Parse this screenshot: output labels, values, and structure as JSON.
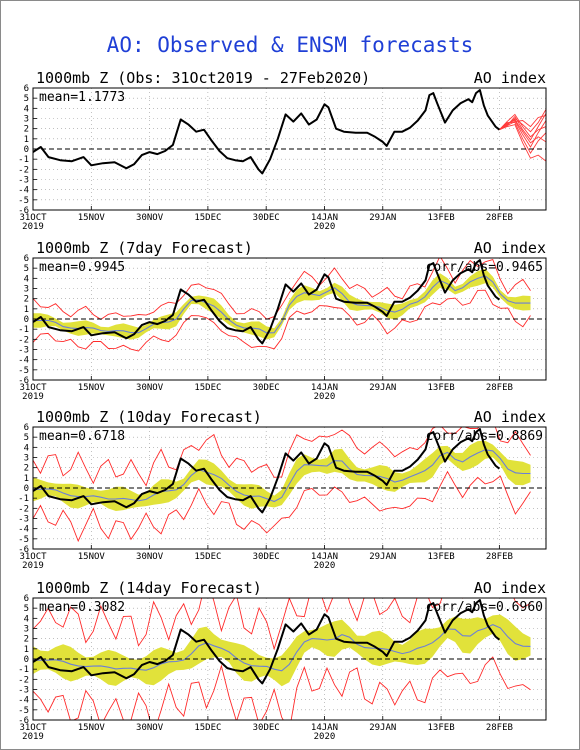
{
  "main_title": "AO: Observed & ENSM forecasts",
  "colors": {
    "title": "#1f3fd6",
    "observed": "#000000",
    "ens_mean": "#6b7fd7",
    "ens_band": "#e1e23a",
    "ens_bound": "#ff2a2a",
    "ens_member": "#ff3b3b"
  },
  "chart_data": [
    {
      "type": "line",
      "title": "1000mb Z (Obs: 31Oct2019 - 27Feb2020)",
      "index_label": "AO index",
      "stat": "mean=1.1773",
      "y_ticks": [
        "6",
        "5",
        "4",
        "3",
        "2",
        "1",
        "0",
        "-1",
        "-2",
        "-3",
        "-4",
        "-5",
        "-6"
      ],
      "ylim": [
        -6,
        6
      ],
      "x_ticks": [
        {
          "day": 0,
          "label": "31OCT",
          "sub": "2019"
        },
        {
          "day": 15,
          "label": "15NOV"
        },
        {
          "day": 30,
          "label": "30NOV"
        },
        {
          "day": 45,
          "label": "15DEC"
        },
        {
          "day": 60,
          "label": "30DEC"
        },
        {
          "day": 75,
          "label": "14JAN",
          "sub": "2020"
        },
        {
          "day": 90,
          "label": "29JAN"
        },
        {
          "day": 105,
          "label": "13FEB"
        },
        {
          "day": 120,
          "label": "28FEB"
        }
      ],
      "xlim": [
        0,
        132
      ],
      "observed": [
        [
          0,
          -0.3
        ],
        [
          2,
          0.2
        ],
        [
          4,
          -0.8
        ],
        [
          7,
          -1.1
        ],
        [
          10,
          -1.2
        ],
        [
          13,
          -0.8
        ],
        [
          15,
          -1.6
        ],
        [
          18,
          -1.4
        ],
        [
          21,
          -1.3
        ],
        [
          24,
          -1.9
        ],
        [
          26,
          -1.5
        ],
        [
          28,
          -0.6
        ],
        [
          30,
          -0.3
        ],
        [
          32,
          -0.5
        ],
        [
          34,
          -0.2
        ],
        [
          36,
          0.4
        ],
        [
          38,
          2.9
        ],
        [
          40,
          2.4
        ],
        [
          42,
          1.7
        ],
        [
          44,
          1.9
        ],
        [
          46,
          0.8
        ],
        [
          48,
          -0.2
        ],
        [
          50,
          -0.9
        ],
        [
          52,
          -1.1
        ],
        [
          54,
          -1.2
        ],
        [
          56,
          -0.8
        ],
        [
          58,
          -2.0
        ],
        [
          59,
          -2.4
        ],
        [
          61,
          -1.0
        ],
        [
          63,
          1.0
        ],
        [
          65,
          3.4
        ],
        [
          67,
          2.7
        ],
        [
          69,
          3.5
        ],
        [
          71,
          2.4
        ],
        [
          73,
          2.9
        ],
        [
          75,
          4.4
        ],
        [
          76,
          4.1
        ],
        [
          78,
          2.0
        ],
        [
          80,
          1.7
        ],
        [
          83,
          1.6
        ],
        [
          86,
          1.6
        ],
        [
          88,
          1.2
        ],
        [
          90,
          0.7
        ],
        [
          91,
          0.3
        ],
        [
          93,
          1.7
        ],
        [
          95,
          1.7
        ],
        [
          97,
          2.1
        ],
        [
          99,
          2.8
        ],
        [
          101,
          3.8
        ],
        [
          102,
          5.3
        ],
        [
          103,
          5.5
        ],
        [
          104,
          4.5
        ],
        [
          106,
          2.6
        ],
        [
          108,
          3.8
        ],
        [
          110,
          4.5
        ],
        [
          112,
          4.9
        ],
        [
          113,
          4.6
        ],
        [
          114,
          5.5
        ],
        [
          115,
          5.8
        ],
        [
          116,
          4.3
        ],
        [
          117,
          3.3
        ],
        [
          119,
          2.2
        ],
        [
          120,
          1.9
        ]
      ],
      "members": [
        [
          [
            120,
            1.9
          ],
          [
            122,
            2.5
          ],
          [
            124,
            2.8
          ],
          [
            126,
            1.4
          ],
          [
            128,
            0.2
          ],
          [
            130,
            1.6
          ],
          [
            132,
            2.8
          ]
        ],
        [
          [
            120,
            1.9
          ],
          [
            122,
            2.3
          ],
          [
            124,
            3.2
          ],
          [
            126,
            1.9
          ],
          [
            128,
            0.9
          ],
          [
            130,
            2.2
          ],
          [
            132,
            3.5
          ]
        ],
        [
          [
            120,
            1.9
          ],
          [
            122,
            2.6
          ],
          [
            124,
            2.6
          ],
          [
            126,
            1.0
          ],
          [
            128,
            -0.4
          ],
          [
            130,
            0.8
          ],
          [
            132,
            1.6
          ]
        ],
        [
          [
            120,
            1.9
          ],
          [
            122,
            2.4
          ],
          [
            124,
            3.0
          ],
          [
            126,
            2.4
          ],
          [
            128,
            1.7
          ],
          [
            130,
            2.6
          ],
          [
            132,
            3.9
          ]
        ],
        [
          [
            120,
            1.9
          ],
          [
            122,
            2.2
          ],
          [
            124,
            2.4
          ],
          [
            126,
            0.6
          ],
          [
            128,
            -0.9
          ],
          [
            130,
            -0.6
          ],
          [
            132,
            -1.2
          ]
        ],
        [
          [
            120,
            1.9
          ],
          [
            122,
            2.7
          ],
          [
            124,
            3.4
          ],
          [
            126,
            2.2
          ],
          [
            128,
            1.2
          ],
          [
            130,
            1.9
          ],
          [
            132,
            2.2
          ]
        ],
        [
          [
            120,
            1.9
          ],
          [
            122,
            2.5
          ],
          [
            124,
            2.9
          ],
          [
            126,
            1.7
          ],
          [
            128,
            0.6
          ],
          [
            130,
            1.2
          ],
          [
            132,
            0.7
          ]
        ],
        [
          [
            120,
            1.9
          ],
          [
            122,
            2.3
          ],
          [
            124,
            2.7
          ],
          [
            126,
            2.8
          ],
          [
            128,
            2.2
          ],
          [
            130,
            3.1
          ],
          [
            132,
            3.3
          ]
        ]
      ]
    },
    {
      "type": "line",
      "title": "1000mb Z (7day Forecast)",
      "index_label": "AO index",
      "stat": "mean=0.9945",
      "corr": "corr/abs=0.9465",
      "lead": 7,
      "spread": 0.55,
      "bound": 1.0,
      "y_ticks": [
        "6",
        "5",
        "4",
        "3",
        "2",
        "1",
        "0",
        "-1",
        "-2",
        "-3",
        "-4",
        "-5",
        "-6"
      ],
      "ylim": [
        -6,
        6
      ],
      "xlim": [
        0,
        132
      ]
    },
    {
      "type": "line",
      "title": "1000mb Z (10day Forecast)",
      "index_label": "AO index",
      "stat": "mean=0.6718",
      "corr": "corr/abs=0.8869",
      "lead": 10,
      "spread": 0.9,
      "bound": 1.9,
      "y_ticks": [
        "6",
        "5",
        "4",
        "3",
        "2",
        "1",
        "0",
        "-1",
        "-2",
        "-3",
        "-4",
        "-5",
        "-6"
      ],
      "ylim": [
        -6,
        6
      ],
      "xlim": [
        0,
        132
      ]
    },
    {
      "type": "line",
      "title": "1000mb Z (14day Forecast)",
      "index_label": "AO index",
      "stat": "mean=0.3082",
      "corr": "corr/abs=0.6960",
      "lead": 14,
      "spread": 1.3,
      "bound": 2.9,
      "y_ticks": [
        "6",
        "5",
        "4",
        "3",
        "2",
        "1",
        "0",
        "-1",
        "-2",
        "-3",
        "-4",
        "-5",
        "-6"
      ],
      "ylim": [
        -6,
        6
      ],
      "xlim": [
        0,
        132
      ]
    }
  ]
}
